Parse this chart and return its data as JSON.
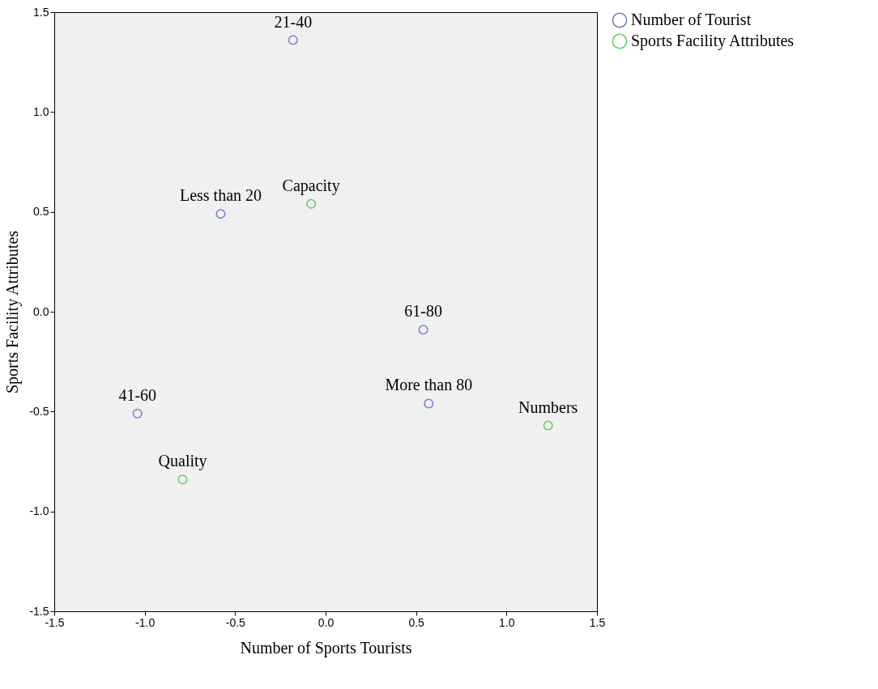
{
  "chart_data": {
    "type": "scatter",
    "xlabel": "Number of Sports Tourists",
    "ylabel": "Sports Facility Attributes",
    "series": [
      {
        "name": "Number of Tourist",
        "color": "#6a7fd0",
        "x": [
          -0.18,
          -0.58,
          0.54,
          0.57,
          -1.04
        ],
        "values": [
          1.36,
          0.49,
          -0.09,
          -0.46,
          -0.51
        ]
      },
      {
        "name": "Sports Facility Attributes",
        "color": "#5fcc5f",
        "x": [
          -0.08,
          1.23,
          -0.79
        ],
        "values": [
          0.54,
          -0.57,
          -0.84
        ]
      }
    ],
    "annotations": [
      {
        "text": "21-40",
        "x": -0.18,
        "y": 1.36
      },
      {
        "text": "Less than 20",
        "x": -0.58,
        "y": 0.49
      },
      {
        "text": "61-80",
        "x": 0.54,
        "y": -0.09
      },
      {
        "text": "More than 80",
        "x": 0.57,
        "y": -0.46
      },
      {
        "text": "41-60",
        "x": -1.04,
        "y": -0.51
      },
      {
        "text": "Capacity",
        "x": -0.08,
        "y": 0.54
      },
      {
        "text": "Numbers",
        "x": 1.23,
        "y": -0.57
      },
      {
        "text": "Quality",
        "x": -0.79,
        "y": -0.84
      }
    ],
    "xlim": [
      -1.5,
      1.5
    ],
    "ylim": [
      -1.5,
      1.5
    ],
    "xticks": [
      -1.5,
      {
        "value": -1.0,
        "label": "-1.0"
      },
      -0.5,
      {
        "value": 0.0,
        "label": "0.0"
      },
      0.5,
      {
        "value": 1.0,
        "label": "1.0"
      },
      1.5
    ],
    "yticks": [
      -1.5,
      {
        "value": -1.0,
        "label": "-1.0"
      },
      -0.5,
      {
        "value": 0.0,
        "label": "0.0"
      },
      0.5,
      {
        "value": 1.0,
        "label": "1.0"
      },
      1.5
    ],
    "grid": false,
    "legend": "top right",
    "marker": "circle"
  }
}
